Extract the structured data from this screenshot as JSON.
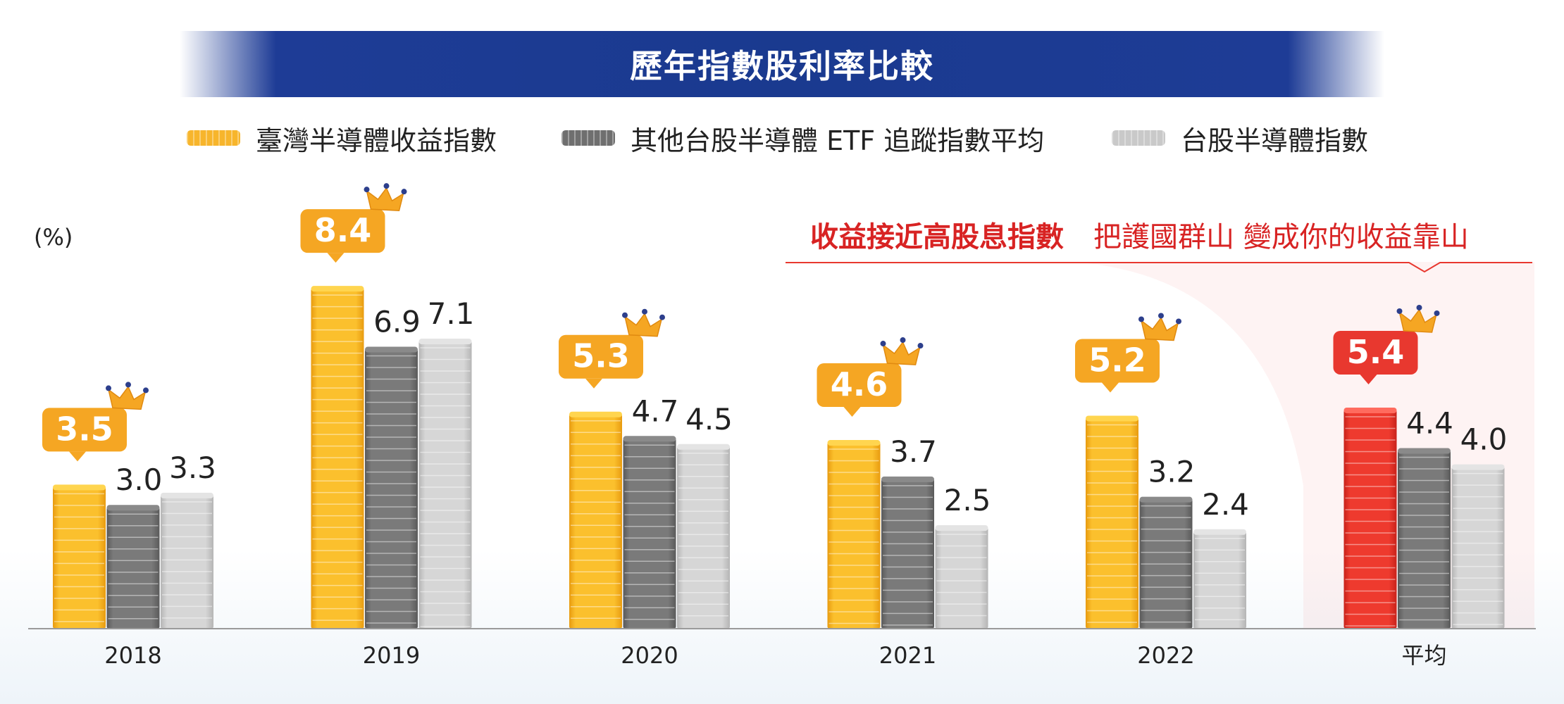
{
  "title": "歷年指數股利率比較",
  "legend": [
    {
      "label": "臺灣半導體收益指數",
      "color": "#f7b52c"
    },
    {
      "label": "其他台股半導體 ETF 追蹤指數平均",
      "color": "#6f6f6f"
    },
    {
      "label": "台股半導體指數",
      "color": "#c9c9c9"
    }
  ],
  "unit_label": "(%)",
  "headline": {
    "part1": "收益接近高股息指數",
    "part2": "把護國群山  變成你的收益靠山"
  },
  "colors": {
    "banner": "#1a3a8f",
    "highlight_red": "#e8382f",
    "headline_red": "#d82323",
    "gold": "#f7b52c",
    "dark_gray": "#6f6f6f",
    "light_gray": "#c9c9c9",
    "callout_gold": "#f5a623",
    "crown": "#f5a623"
  },
  "chart_data": {
    "type": "bar",
    "categories": [
      "2018",
      "2019",
      "2020",
      "2021",
      "2022",
      "平均"
    ],
    "series": [
      {
        "name": "臺灣半導體收益指數",
        "values": [
          3.5,
          8.4,
          5.3,
          4.6,
          5.2,
          5.4
        ]
      },
      {
        "name": "其他台股半導體 ETF 追蹤指數平均",
        "values": [
          3.0,
          6.9,
          4.7,
          3.7,
          3.2,
          4.4
        ]
      },
      {
        "name": "台股半導體指數",
        "values": [
          3.3,
          7.1,
          4.5,
          2.5,
          2.4,
          4.0
        ]
      }
    ],
    "data_labels": [
      [
        "3.5",
        "3.0",
        "3.3"
      ],
      [
        "8.4",
        "6.9",
        "7.1"
      ],
      [
        "5.3",
        "4.7",
        "4.5"
      ],
      [
        "4.6",
        "3.7",
        "2.5"
      ],
      [
        "5.2",
        "3.2",
        "2.4"
      ],
      [
        "5.4",
        "4.4",
        "4.0"
      ]
    ],
    "ylabel": "(%)",
    "ylim": [
      0,
      9
    ],
    "grid": false,
    "legend_position": "top-center",
    "highlight_category": "平均"
  }
}
